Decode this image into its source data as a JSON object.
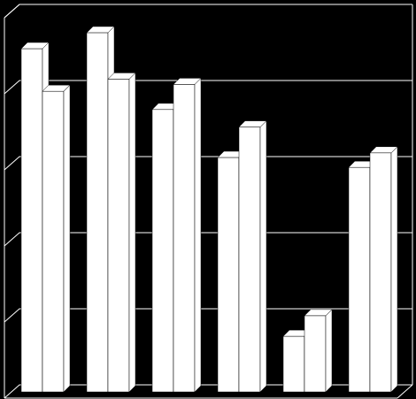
{
  "chart_data": {
    "type": "bar3d",
    "categories": [
      null,
      null,
      null,
      null,
      null,
      null
    ],
    "series": [
      {
        "color": "#ffffff",
        "values": [
          4.5,
          4.71,
          3.7,
          3.07,
          0.72,
          2.94
        ]
      },
      {
        "color": "#ffffff",
        "values": [
          3.94,
          4.1,
          4.03,
          3.47,
          0.99,
          3.13
        ]
      }
    ],
    "ylim": [
      0,
      5
    ],
    "yticks": [
      0,
      1,
      2,
      3,
      4,
      5
    ],
    "grid": true,
    "background": "#000000",
    "grid_color": "#ffffff"
  }
}
